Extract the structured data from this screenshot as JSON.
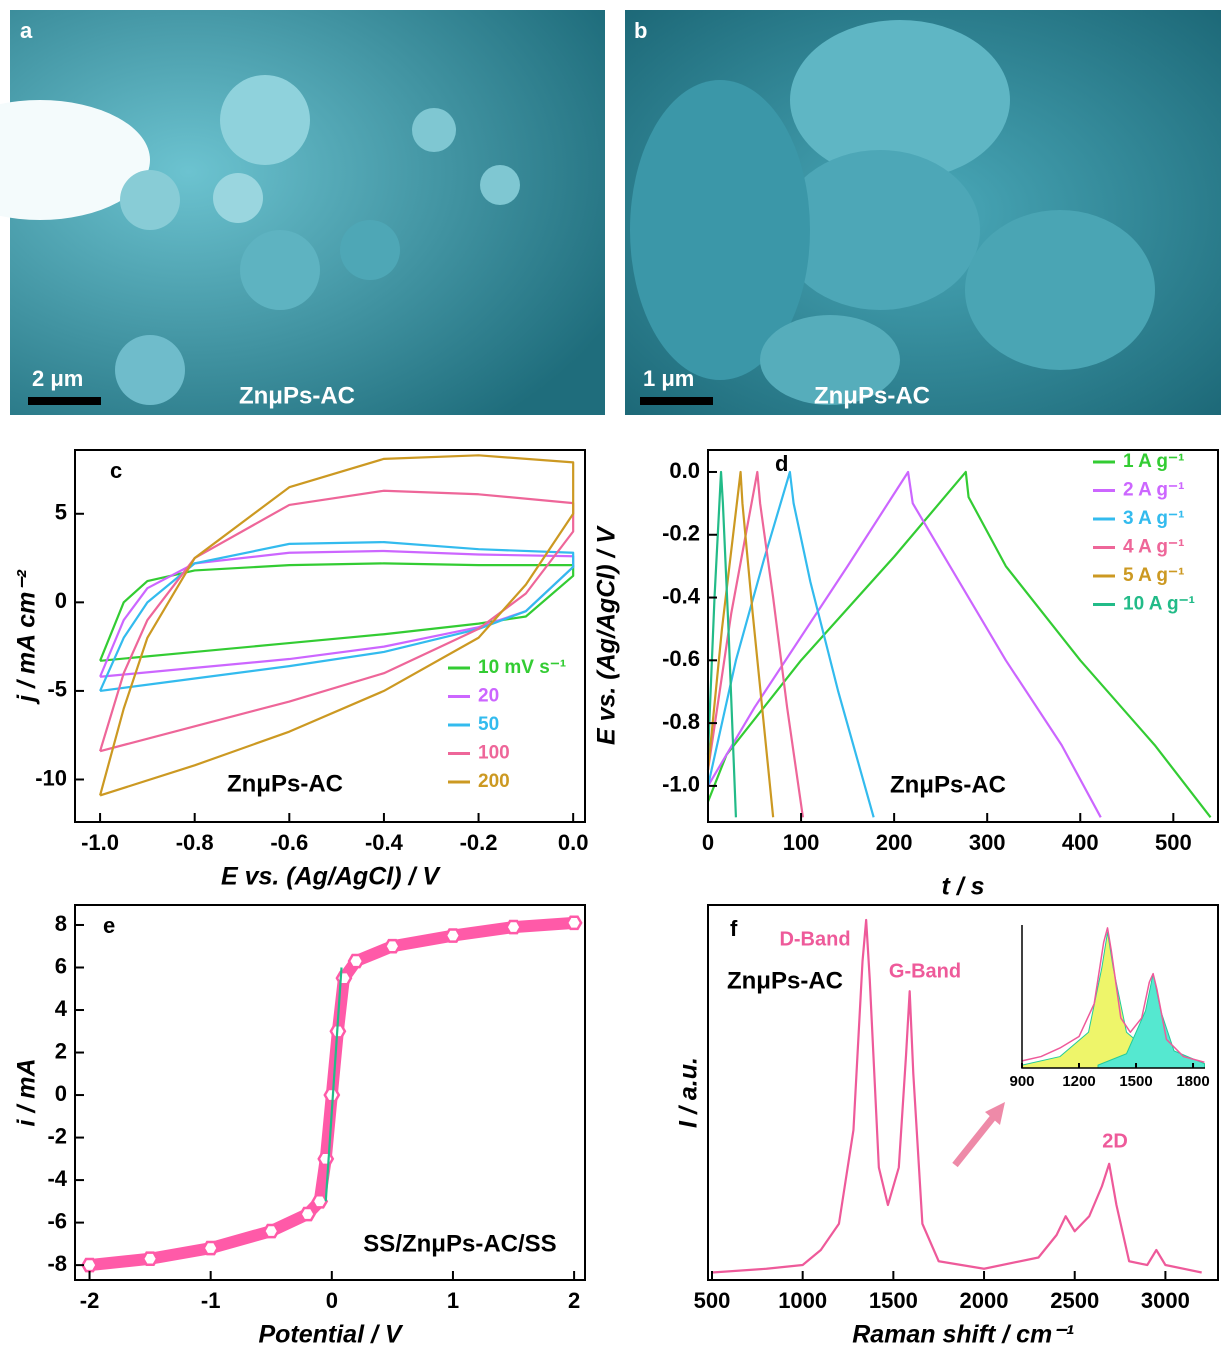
{
  "images": [
    {
      "label": "a",
      "scale": "2 μm",
      "caption": "ZnμPs-AC"
    },
    {
      "label": "b",
      "scale": "1 μm",
      "caption": "ZnμPs-AC"
    }
  ],
  "chart_data": [
    {
      "type": "line",
      "panel_label": "c",
      "sample_label": "ZnμPs-AC",
      "x_label": "E vs. (Ag/AgCl) / V",
      "y_label": "j / mA cm⁻²",
      "xlim": [
        -1.053,
        0.025
      ],
      "ylim": [
        -12.4,
        8.6
      ],
      "xticks": [
        {
          "value": -1,
          "label": "-1.0"
        },
        -0.8,
        -0.6,
        -0.4,
        -0.2,
        {
          "value": 0,
          "label": "0.0"
        }
      ],
      "yticks": [
        -10,
        -5,
        0,
        5
      ],
      "legend": "lower right",
      "series": [
        {
          "name": "10 mV s⁻¹",
          "color": "#33cc33",
          "x": [
            -1,
            -0.95,
            -0.9,
            -0.8,
            -0.6,
            -0.4,
            -0.2,
            0,
            0,
            -0.1,
            -0.2,
            -0.4,
            -0.6,
            -0.8,
            -1
          ],
          "values": [
            -3.3,
            0,
            1.2,
            1.8,
            2.1,
            2.2,
            2.1,
            2.1,
            1.5,
            -0.8,
            -1.2,
            -1.8,
            -2.3,
            -2.8,
            -3.3
          ]
        },
        {
          "name": "20",
          "color": "#cc66ff",
          "x": [
            -1,
            -0.95,
            -0.9,
            -0.8,
            -0.6,
            -0.4,
            -0.2,
            0,
            0,
            -0.1,
            -0.2,
            -0.4,
            -0.6,
            -0.8,
            -1
          ],
          "values": [
            -4.2,
            -1,
            0.8,
            2.2,
            2.8,
            2.9,
            2.7,
            2.6,
            2,
            -0.5,
            -1.4,
            -2.5,
            -3.2,
            -3.7,
            -4.2
          ]
        },
        {
          "name": "50",
          "color": "#33bbee",
          "x": [
            -1,
            -0.95,
            -0.9,
            -0.8,
            -0.6,
            -0.4,
            -0.2,
            0,
            0,
            -0.1,
            -0.2,
            -0.4,
            -0.6,
            -0.8,
            -1
          ],
          "values": [
            -5,
            -2,
            0,
            2.2,
            3.3,
            3.4,
            3,
            2.8,
            2,
            -0.5,
            -1.5,
            -2.8,
            -3.6,
            -4.3,
            -5
          ]
        },
        {
          "name": "100",
          "color": "#ee6699",
          "x": [
            -1,
            -0.95,
            -0.9,
            -0.8,
            -0.6,
            -0.4,
            -0.2,
            0,
            0,
            -0.1,
            -0.2,
            -0.4,
            -0.6,
            -0.8,
            -1
          ],
          "values": [
            -8.4,
            -4,
            -1,
            2.5,
            5.5,
            6.3,
            6.1,
            5.6,
            4,
            0.5,
            -1.5,
            -4,
            -5.6,
            -7,
            -8.4
          ]
        },
        {
          "name": "200",
          "color": "#cc9922",
          "x": [
            -1,
            -0.95,
            -0.9,
            -0.8,
            -0.6,
            -0.4,
            -0.2,
            0,
            0,
            -0.1,
            -0.2,
            -0.4,
            -0.6,
            -0.8,
            -1
          ],
          "values": [
            -10.9,
            -6,
            -2,
            2.5,
            6.5,
            8.1,
            8.3,
            7.9,
            5,
            1,
            -2,
            -5,
            -7.3,
            -9.2,
            -10.9
          ]
        }
      ]
    },
    {
      "type": "line",
      "panel_label": "d",
      "sample_label": "ZnμPs-AC",
      "x_label": "t / s",
      "y_label": "E vs. (Ag/AgCl) / V",
      "xlim": [
        0,
        548
      ],
      "ylim": [
        -1.115,
        0.07
      ],
      "xticks": [
        0,
        100,
        200,
        300,
        400,
        500
      ],
      "yticks": [
        {
          "value": 0,
          "label": "0.0"
        },
        -0.2,
        -0.4,
        -0.6,
        -0.8,
        {
          "value": -1,
          "label": "-1.0"
        }
      ],
      "legend": "upper right",
      "series": [
        {
          "name": "1 A g⁻¹",
          "color": "#33cc33",
          "x": [
            0,
            20,
            100,
            200,
            277,
            280,
            320,
            400,
            480,
            540
          ],
          "values": [
            -1.05,
            -0.9,
            -0.6,
            -0.27,
            0,
            -0.08,
            -0.3,
            -0.6,
            -0.87,
            -1.1
          ]
        },
        {
          "name": "2 A g⁻¹",
          "color": "#cc66ff",
          "x": [
            0,
            50,
            150,
            215,
            220,
            260,
            320,
            380,
            422
          ],
          "values": [
            -1,
            -0.75,
            -0.3,
            0,
            -0.1,
            -0.3,
            -0.6,
            -0.87,
            -1.1
          ]
        },
        {
          "name": "3 A g⁻¹",
          "color": "#33bbee",
          "x": [
            0,
            30,
            60,
            88,
            92,
            110,
            140,
            178
          ],
          "values": [
            -1,
            -0.6,
            -0.28,
            0,
            -0.1,
            -0.35,
            -0.7,
            -1.1
          ]
        },
        {
          "name": "4 A g⁻¹",
          "color": "#ee6699",
          "x": [
            0,
            25,
            53,
            56,
            70,
            85,
            102
          ],
          "values": [
            -0.95,
            -0.45,
            0,
            -0.1,
            -0.4,
            -0.75,
            -1.1
          ]
        },
        {
          "name": "5 A g⁻¹",
          "color": "#cc9922",
          "x": [
            0,
            15,
            35,
            37,
            48,
            70
          ],
          "values": [
            -0.95,
            -0.5,
            0,
            -0.1,
            -0.45,
            -1.1
          ]
        },
        {
          "name": "10 A g⁻¹",
          "color": "#22bb88",
          "x": [
            0,
            7,
            14,
            16,
            22,
            30
          ],
          "values": [
            -0.9,
            -0.4,
            0,
            -0.1,
            -0.5,
            -1.1
          ]
        }
      ]
    },
    {
      "type": "line",
      "panel_label": "e",
      "sample_label": "SS/ZnμPs-AC/SS",
      "x_label": "Potential / V",
      "y_label": "i / mA",
      "xlim": [
        -2.12,
        2.09
      ],
      "ylim": [
        -8.7,
        8.94
      ],
      "xticks": [
        -2,
        -1,
        0,
        1,
        2
      ],
      "yticks": [
        -8,
        -6,
        -4,
        -2,
        0,
        2,
        4,
        6,
        8
      ],
      "series": [
        {
          "color": "#ff5aa8",
          "marker": "hexagon",
          "x": [
            -2,
            -1.5,
            -1,
            -0.5,
            -0.2,
            -0.1,
            -0.05,
            0,
            0.05,
            0.1,
            0.2,
            0.5,
            1,
            1.5,
            2
          ],
          "values": [
            -8,
            -7.7,
            -7.2,
            -6.4,
            -5.6,
            -5,
            -3,
            0,
            3,
            5.5,
            6.3,
            7,
            7.5,
            7.9,
            8.1
          ]
        },
        {
          "color": "#22bb88",
          "x": [
            -0.05,
            0.08
          ],
          "values": [
            -5,
            6
          ]
        }
      ]
    },
    {
      "type": "line",
      "panel_label": "f",
      "sample_label": "ZnμPs-AC",
      "peak_labels": [
        "D-Band",
        "G-Band",
        "2D"
      ],
      "x_label": "Raman shift / cm⁻¹",
      "y_label": "I / a.u.",
      "xlim": [
        478,
        3290
      ],
      "ylim": [
        0,
        100
      ],
      "xticks": [
        500,
        1000,
        1500,
        2000,
        2500,
        3000
      ],
      "series": [
        {
          "color": "#ee5a9a",
          "x": [
            500,
            800,
            1000,
            1100,
            1200,
            1280,
            1330,
            1350,
            1370,
            1420,
            1470,
            1530,
            1570,
            1590,
            1610,
            1660,
            1750,
            2000,
            2300,
            2400,
            2450,
            2500,
            2580,
            2650,
            2690,
            2730,
            2800,
            2900,
            2950,
            3000,
            3200
          ],
          "values": [
            2,
            3,
            4,
            8,
            15,
            40,
            85,
            96,
            80,
            30,
            20,
            30,
            60,
            77,
            55,
            15,
            5,
            3,
            6,
            12,
            17,
            13,
            17,
            25,
            31,
            20,
            5,
            4,
            8,
            4,
            2
          ]
        }
      ]
    },
    {
      "type": "line",
      "xlim": [
        900,
        1863
      ],
      "ylim": [
        0,
        100
      ],
      "xticks": [
        900,
        1200,
        1500,
        1800
      ],
      "series": [
        {
          "color": "#eef56a",
          "fill": true,
          "x": [
            900,
            1100,
            1250,
            1320,
            1350,
            1380,
            1450,
            1600,
            1860
          ],
          "values": [
            2,
            8,
            25,
            70,
            95,
            70,
            25,
            8,
            3
          ]
        },
        {
          "color": "#55e8d0",
          "fill": true,
          "x": [
            1300,
            1450,
            1550,
            1590,
            1630,
            1700,
            1860
          ],
          "values": [
            2,
            10,
            40,
            66,
            40,
            12,
            3
          ]
        },
        {
          "color": "#ee5a9a",
          "x": [
            900,
            1000,
            1100,
            1200,
            1280,
            1330,
            1350,
            1370,
            1420,
            1470,
            1530,
            1570,
            1590,
            1610,
            1660,
            1750,
            1860
          ],
          "values": [
            5,
            8,
            14,
            22,
            45,
            88,
            98,
            82,
            35,
            25,
            35,
            60,
            66,
            55,
            20,
            8,
            4
          ]
        }
      ]
    }
  ]
}
